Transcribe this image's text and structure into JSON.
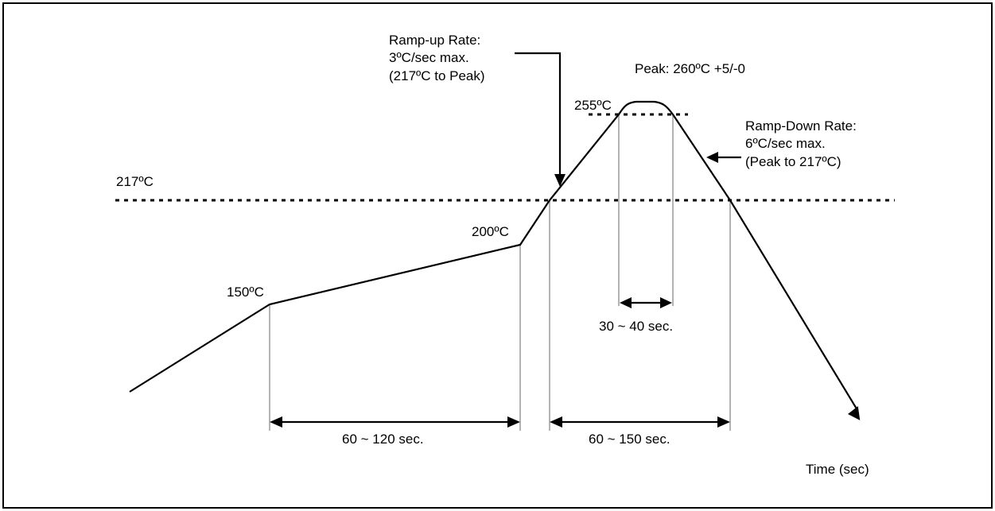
{
  "diagram": {
    "labels": {
      "temp_150": "150ºC",
      "temp_200": "200ºC",
      "temp_217": "217ºC",
      "temp_255": "255ºC",
      "peak": "Peak: 260ºC +5/-0",
      "ramp_up_line1": "Ramp-up Rate:",
      "ramp_up_line2": "3ºC/sec max.",
      "ramp_up_line3": "(217ºC to Peak)",
      "ramp_down_line1": "Ramp-Down Rate:",
      "ramp_down_line2": "6ºC/sec max.",
      "ramp_down_line3": "(Peak to 217ºC)",
      "preheat_duration": "60 ~ 120 sec.",
      "above_liquidus_duration": "60 ~ 150 sec.",
      "peak_duration": "30 ~ 40 sec.",
      "x_axis": "Time (sec)"
    },
    "colors": {
      "curve": "#000000",
      "guides": "#b4b4b4",
      "frame": "#000000"
    }
  }
}
